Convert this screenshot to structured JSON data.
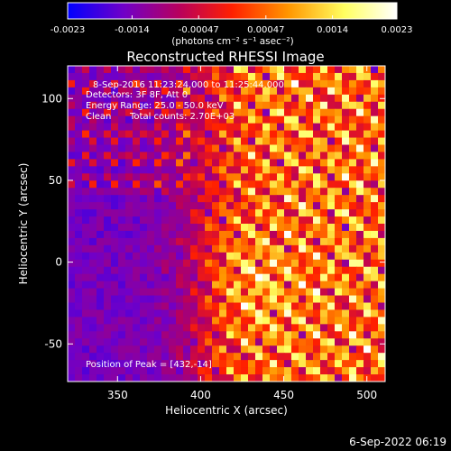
{
  "colorbar": {
    "tick_labels": [
      "-0.0023",
      "-0.0014",
      "-0.00047",
      "0.00047",
      "0.0014",
      "0.0023"
    ],
    "tick_values": [
      -0.0023,
      -0.0014,
      -0.00047,
      0.00047,
      0.0014,
      0.0023
    ],
    "range": [
      -0.0023,
      0.0023
    ],
    "units_label": "(photons cm⁻² s⁻¹ asec⁻²)",
    "colormap": [
      "#0000ff",
      "#7000c8",
      "#b8005c",
      "#ff2000",
      "#ff9600",
      "#ffff60",
      "#ffffff"
    ]
  },
  "annotations": {
    "time_range": "8-Sep-2016 11:23:24.000 to 11:25:44.000",
    "detectors": "Detectors: 3F 8F, Att 0",
    "energy_range": "Energy Range: 25.0 - 50.0 keV",
    "algorithm": "Clean",
    "total_counts": "Total counts: 2.70E+03",
    "peak_position": "Position of Peak = [432,-14]"
  },
  "footer_date": "6-Sep-2022 06:19",
  "chart_data": {
    "type": "heatmap",
    "title": "Reconstructed RHESSI Image",
    "xlabel": "Heliocentric X (arcsec)",
    "ylabel": "Heliocentric Y (arcsec)",
    "xlim": [
      320,
      511
    ],
    "ylim": [
      -73,
      120
    ],
    "x_ticks": [
      350,
      400,
      450,
      500
    ],
    "y_ticks": [
      -50,
      0,
      50,
      100
    ],
    "x_tick_labels": [
      "350",
      "400",
      "450",
      "500"
    ],
    "y_tick_labels": [
      "-50",
      "0",
      "50",
      "100"
    ],
    "peak": [
      432,
      -14
    ],
    "value_range": [
      -0.0023,
      0.0023
    ]
  }
}
